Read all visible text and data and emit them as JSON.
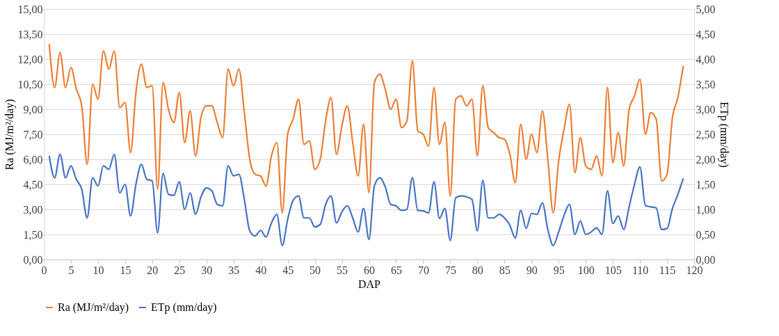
{
  "chart_data": {
    "type": "line",
    "xlabel": "DAP",
    "ylabel": "Ra (MJ/m²/day)",
    "y2label": "ETp (mm/day)",
    "x": [
      1,
      2,
      3,
      4,
      5,
      6,
      7,
      8,
      9,
      10,
      11,
      12,
      13,
      14,
      15,
      16,
      17,
      18,
      19,
      20,
      21,
      22,
      23,
      24,
      25,
      26,
      27,
      28,
      29,
      30,
      31,
      32,
      33,
      34,
      35,
      36,
      37,
      38,
      39,
      40,
      41,
      42,
      43,
      44,
      45,
      46,
      47,
      48,
      49,
      50,
      51,
      52,
      53,
      54,
      55,
      56,
      57,
      58,
      59,
      60,
      61,
      62,
      63,
      64,
      65,
      66,
      67,
      68,
      69,
      70,
      71,
      72,
      73,
      74,
      75,
      76,
      77,
      78,
      79,
      80,
      81,
      82,
      83,
      84,
      85,
      86,
      87,
      88,
      89,
      90,
      91,
      92,
      93,
      94,
      95,
      96,
      97,
      98,
      99,
      100,
      101,
      102,
      103,
      104,
      105,
      106,
      107,
      108,
      109,
      110,
      111,
      112,
      113,
      114,
      115,
      116,
      117,
      118
    ],
    "series": [
      {
        "name": "Ra (MJ/m²/day)",
        "color": "#ed7d31",
        "values": [
          12.9,
          10.3,
          12.4,
          10.3,
          11.5,
          10.2,
          9.2,
          5.7,
          10.5,
          9.6,
          12.5,
          11.4,
          12.5,
          9.1,
          9.4,
          6.4,
          10.0,
          11.7,
          10.3,
          10.4,
          4.2,
          10.6,
          9.0,
          8.2,
          10.0,
          7.0,
          8.9,
          6.2,
          8.5,
          9.2,
          9.2,
          8.2,
          7.3,
          11.4,
          10.4,
          11.4,
          8.8,
          6.0,
          5.1,
          5.0,
          4.4,
          6.2,
          7.0,
          2.8,
          7.5,
          8.4,
          9.6,
          6.9,
          7.1,
          5.4,
          6.0,
          8.3,
          9.7,
          6.3,
          8.0,
          9.2,
          7.0,
          5.0,
          8.1,
          4.0,
          10.6,
          11.1,
          10.2,
          9.0,
          9.6,
          7.9,
          8.3,
          11.9,
          7.7,
          7.5,
          6.8,
          10.3,
          6.9,
          8.2,
          3.8,
          9.6,
          9.8,
          9.2,
          9.6,
          6.2,
          10.4,
          7.9,
          7.6,
          7.3,
          7.2,
          6.3,
          4.6,
          8.1,
          6.0,
          7.5,
          6.4,
          8.9,
          6.0,
          2.8,
          5.9,
          7.8,
          9.3,
          5.2,
          7.3,
          5.6,
          5.4,
          6.2,
          5.0,
          10.3,
          5.8,
          7.6,
          5.6,
          9.0,
          9.8,
          10.8,
          7.5,
          8.8,
          8.4,
          4.7,
          5.1,
          8.5,
          9.7,
          11.6
        ]
      },
      {
        "name": "ETp (mm/day)",
        "color": "#4472c4",
        "axis": "y2",
        "values": [
          2.07,
          1.63,
          2.1,
          1.63,
          1.87,
          1.6,
          1.4,
          0.83,
          1.63,
          1.47,
          1.87,
          1.8,
          2.1,
          1.33,
          1.5,
          0.87,
          1.5,
          1.9,
          1.6,
          1.57,
          0.53,
          1.72,
          1.3,
          1.28,
          1.55,
          1.0,
          1.33,
          0.9,
          1.25,
          1.43,
          1.37,
          1.1,
          1.07,
          1.87,
          1.67,
          1.7,
          1.2,
          0.57,
          0.47,
          0.58,
          0.45,
          0.73,
          0.9,
          0.28,
          0.8,
          1.18,
          1.27,
          0.83,
          0.83,
          0.65,
          0.7,
          1.1,
          1.27,
          0.73,
          0.95,
          1.07,
          0.83,
          0.55,
          1.02,
          0.4,
          1.47,
          1.63,
          1.45,
          1.1,
          1.07,
          0.98,
          1.0,
          1.63,
          0.98,
          0.97,
          0.93,
          1.55,
          0.82,
          1.02,
          0.38,
          1.23,
          1.27,
          1.25,
          1.2,
          0.57,
          1.58,
          0.83,
          0.83,
          0.9,
          0.83,
          0.68,
          0.43,
          0.98,
          0.62,
          0.92,
          0.9,
          1.13,
          0.6,
          0.28,
          0.55,
          0.88,
          1.1,
          0.5,
          0.77,
          0.5,
          0.55,
          0.63,
          0.5,
          1.37,
          0.72,
          0.87,
          0.6,
          1.05,
          1.5,
          1.85,
          1.08,
          1.05,
          1.03,
          0.6,
          0.62,
          1.02,
          1.3,
          1.62
        ]
      }
    ],
    "xlim": [
      0,
      120
    ],
    "xticks": [
      0,
      5,
      10,
      15,
      20,
      25,
      30,
      35,
      40,
      45,
      50,
      55,
      60,
      65,
      70,
      75,
      80,
      85,
      90,
      95,
      100,
      105,
      110,
      115,
      120
    ],
    "ylim": [
      0,
      15
    ],
    "yticks": [
      {
        "value": 0,
        "label": "0,00"
      },
      {
        "value": 1.5,
        "label": "1,50"
      },
      {
        "value": 3,
        "label": "3,00"
      },
      {
        "value": 4.5,
        "label": "4,50"
      },
      {
        "value": 6,
        "label": "6,00"
      },
      {
        "value": 7.5,
        "label": "7,50"
      },
      {
        "value": 9,
        "label": "9,00"
      },
      {
        "value": 10.5,
        "label": "10,50"
      },
      {
        "value": 12,
        "label": "12,00"
      },
      {
        "value": 13.5,
        "label": "13,50"
      },
      {
        "value": 15,
        "label": "15,00"
      }
    ],
    "y2lim": [
      0,
      5
    ],
    "y2ticks": [
      {
        "value": 0,
        "label": "0,00"
      },
      {
        "value": 0.5,
        "label": "0,50"
      },
      {
        "value": 1,
        "label": "1,00"
      },
      {
        "value": 1.5,
        "label": "1,50"
      },
      {
        "value": 2,
        "label": "2,00"
      },
      {
        "value": 2.5,
        "label": "2,50"
      },
      {
        "value": 3,
        "label": "3,00"
      },
      {
        "value": 3.5,
        "label": "3,50"
      },
      {
        "value": 4,
        "label": "4,00"
      },
      {
        "value": 4.5,
        "label": "4,50"
      },
      {
        "value": 5,
        "label": "5,00"
      }
    ],
    "grid": "y",
    "legend": "bottom",
    "marker": "none",
    "line_style": "solid"
  }
}
